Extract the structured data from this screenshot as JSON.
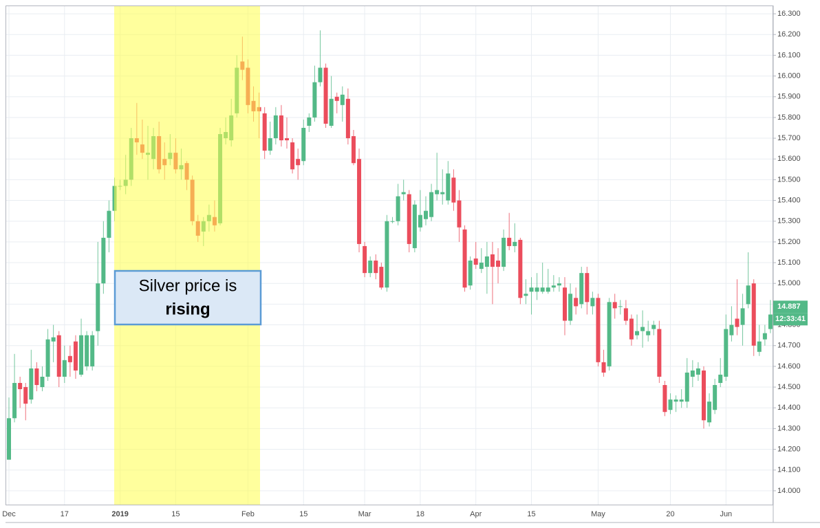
{
  "chart_data": {
    "type": "candlestick",
    "categories": [
      "Dec",
      null,
      null,
      null,
      null,
      null,
      null,
      null,
      null,
      null,
      "17",
      null,
      null,
      null,
      null,
      null,
      null,
      null,
      null,
      null,
      "2019",
      null,
      null,
      null,
      null,
      null,
      null,
      null,
      null,
      null,
      "15",
      null,
      null,
      null,
      null,
      null,
      null,
      null,
      null,
      null,
      null,
      null,
      null,
      "Feb",
      null,
      null,
      null,
      null,
      null,
      null,
      null,
      null,
      null,
      "15",
      null,
      null,
      null,
      null,
      null,
      null,
      null,
      null,
      null,
      null,
      "Mar",
      null,
      null,
      null,
      null,
      null,
      null,
      null,
      null,
      null,
      "18",
      null,
      null,
      null,
      null,
      null,
      null,
      null,
      null,
      null,
      "Apr",
      null,
      null,
      null,
      null,
      null,
      null,
      null,
      null,
      null,
      "15",
      null,
      null,
      null,
      null,
      null,
      null,
      null,
      null,
      null,
      null,
      null,
      "May",
      null,
      null,
      null,
      null,
      null,
      null,
      null,
      null,
      null,
      null,
      null,
      null,
      "20",
      null,
      null,
      null,
      null,
      null,
      null,
      null,
      null,
      null,
      "Jun",
      null,
      null,
      null,
      null,
      null,
      null,
      null,
      null
    ],
    "open": [
      14.15,
      14.35,
      14.52,
      14.5,
      14.44,
      14.59,
      14.5,
      14.55,
      14.72,
      14.75,
      14.55,
      14.65,
      14.72,
      14.56,
      14.6,
      14.6,
      14.77,
      15.0,
      15.22,
      15.35,
      15.47,
      15.47,
      15.5,
      15.7,
      15.67,
      15.62,
      15.6,
      15.71,
      15.6,
      15.6,
      15.63,
      15.55,
      15.58,
      15.5,
      15.3,
      15.25,
      15.3,
      15.32,
      15.29,
      15.7,
      15.69,
      15.82,
      16.07,
      16.04,
      15.88,
      15.85,
      15.82,
      15.64,
      15.7,
      15.81,
      15.7,
      15.68,
      15.6,
      15.59,
      15.76,
      15.8,
      15.97,
      16.04,
      15.76,
      15.9,
      15.86,
      15.89,
      15.71,
      15.6,
      15.18,
      15.05,
      15.11,
      15.08,
      14.98,
      15.3,
      15.3,
      15.43,
      15.43,
      15.17,
      15.27,
      15.31,
      15.32,
      15.43,
      15.43,
      15.4,
      15.51,
      15.4,
      15.26,
      14.99,
      15.12,
      15.07,
      15.08,
      15.14,
      15.11,
      15.08,
      15.22,
      15.18,
      15.21,
      14.94,
      14.96,
      14.96,
      14.96,
      14.96,
      14.98,
      14.99,
      14.98,
      14.82,
      14.93,
      14.9,
      15.05,
      14.89,
      14.93,
      14.62,
      14.6,
      14.91,
      14.89,
      14.88,
      14.83,
      14.75,
      14.77,
      14.75,
      14.78,
      14.78,
      14.51,
      14.39,
      14.43,
      14.43,
      14.43,
      14.55,
      14.56,
      14.58,
      14.33,
      14.39,
      14.52,
      14.55,
      14.75,
      14.83,
      14.8,
      14.9,
      15.0,
      14.67,
      14.73,
      14.78
    ],
    "high": [
      14.45,
      14.66,
      14.55,
      14.52,
      14.68,
      14.62,
      14.6,
      14.78,
      14.8,
      14.77,
      14.7,
      14.7,
      14.75,
      14.83,
      14.77,
      14.77,
      15.2,
      15.3,
      15.4,
      15.51,
      15.5,
      15.62,
      15.75,
      15.87,
      15.79,
      15.76,
      15.75,
      15.78,
      15.68,
      15.72,
      15.7,
      15.65,
      15.59,
      15.52,
      15.33,
      15.32,
      15.38,
      15.4,
      15.75,
      15.8,
      15.89,
      16.1,
      16.19,
      16.08,
      15.95,
      15.92,
      15.85,
      15.78,
      15.85,
      15.86,
      15.8,
      15.7,
      15.65,
      15.79,
      15.82,
      16.05,
      16.22,
      16.06,
      16.0,
      15.92,
      15.95,
      15.94,
      15.74,
      15.65,
      15.2,
      15.13,
      15.14,
      15.1,
      15.33,
      15.32,
      15.48,
      15.5,
      15.45,
      15.4,
      15.45,
      15.42,
      15.48,
      15.63,
      15.55,
      15.59,
      15.55,
      15.45,
      15.28,
      15.13,
      15.2,
      15.17,
      15.2,
      15.2,
      15.17,
      15.26,
      15.34,
      15.29,
      15.22,
      15.02,
      15.03,
      15.05,
      15.1,
      15.07,
      15.04,
      15.03,
      15.03,
      15.0,
      14.98,
      15.08,
      15.08,
      14.96,
      14.95,
      14.68,
      14.93,
      14.95,
      14.92,
      14.92,
      14.85,
      14.85,
      14.87,
      14.82,
      14.82,
      14.82,
      14.53,
      14.47,
      14.46,
      14.49,
      14.64,
      14.63,
      14.62,
      14.6,
      14.47,
      14.54,
      14.64,
      14.85,
      14.89,
      15.02,
      14.95,
      15.15,
      15.02,
      14.8,
      14.8,
      14.92
    ],
    "low": [
      14.15,
      14.33,
      14.4,
      14.34,
      14.42,
      14.48,
      14.48,
      14.53,
      14.62,
      14.5,
      14.52,
      14.55,
      14.54,
      14.55,
      14.58,
      14.58,
      14.7,
      14.95,
      15.15,
      15.3,
      15.45,
      15.43,
      15.47,
      15.62,
      15.6,
      15.5,
      15.55,
      15.53,
      15.5,
      15.57,
      15.53,
      15.5,
      15.45,
      15.28,
      15.2,
      15.18,
      15.25,
      15.25,
      15.28,
      15.67,
      15.66,
      15.8,
      15.98,
      15.82,
      15.78,
      15.7,
      15.6,
      15.62,
      15.67,
      15.66,
      15.65,
      15.53,
      15.5,
      15.57,
      15.73,
      15.78,
      15.95,
      15.75,
      15.75,
      15.82,
      15.78,
      15.67,
      15.57,
      15.15,
      15.03,
      15.03,
      15.02,
      14.97,
      14.96,
      15.29,
      15.28,
      15.4,
      15.15,
      15.15,
      15.25,
      15.28,
      15.3,
      15.4,
      15.38,
      15.38,
      15.35,
      15.2,
      14.96,
      14.97,
      15.07,
      15.05,
      14.95,
      14.9,
      15.0,
      15.06,
      15.16,
      15.15,
      14.9,
      14.9,
      14.85,
      14.92,
      14.95,
      14.95,
      14.96,
      14.96,
      14.75,
      14.8,
      14.85,
      14.88,
      14.85,
      14.85,
      14.6,
      14.55,
      14.58,
      14.83,
      14.85,
      14.8,
      14.7,
      14.73,
      14.69,
      14.72,
      14.75,
      14.52,
      14.36,
      14.37,
      14.38,
      14.4,
      14.4,
      14.5,
      14.53,
      14.3,
      14.31,
      14.37,
      14.5,
      14.53,
      14.72,
      14.75,
      14.7,
      14.88,
      14.65,
      14.65,
      14.7,
      14.76
    ],
    "close": [
      14.35,
      14.52,
      14.49,
      14.42,
      14.59,
      14.51,
      14.55,
      14.73,
      14.74,
      14.55,
      14.63,
      14.62,
      14.58,
      14.75,
      14.75,
      14.75,
      15.0,
      15.22,
      15.35,
      15.47,
      15.47,
      15.5,
      15.7,
      15.68,
      15.63,
      15.63,
      15.71,
      15.55,
      15.57,
      15.63,
      15.55,
      15.57,
      15.5,
      15.3,
      15.23,
      15.3,
      15.33,
      15.28,
      15.72,
      15.73,
      15.81,
      16.04,
      16.03,
      15.86,
      15.83,
      15.83,
      15.64,
      15.7,
      15.81,
      15.69,
      15.69,
      15.55,
      15.57,
      15.75,
      15.8,
      15.97,
      16.04,
      15.77,
      15.89,
      15.88,
      15.91,
      15.7,
      15.58,
      15.19,
      15.05,
      15.11,
      15.05,
      14.98,
      15.3,
      15.3,
      15.42,
      15.44,
      15.19,
      15.38,
      15.33,
      15.35,
      15.44,
      15.45,
      15.44,
      15.53,
      15.39,
      15.27,
      14.98,
      15.11,
      15.09,
      15.1,
      15.13,
      15.08,
      15.08,
      15.22,
      15.18,
      15.2,
      14.93,
      14.95,
      14.98,
      14.98,
      14.98,
      14.98,
      14.99,
      15.0,
      14.82,
      14.95,
      14.89,
      15.05,
      14.91,
      14.93,
      14.62,
      14.57,
      14.91,
      14.88,
      14.89,
      14.82,
      14.73,
      14.77,
      14.79,
      14.77,
      14.8,
      14.55,
      14.38,
      14.44,
      14.44,
      14.44,
      14.57,
      14.58,
      14.59,
      14.34,
      14.43,
      14.51,
      14.56,
      14.78,
      14.8,
      14.79,
      14.88,
      14.99,
      14.7,
      14.72,
      14.76,
      14.85
    ],
    "up_color": "#53b987",
    "down_color": "#eb4d5c",
    "ylim": [
      13.93,
      16.34
    ],
    "yticks": [
      {
        "value": 14.0,
        "label": "14.000"
      },
      {
        "value": 14.1,
        "label": "14.100"
      },
      {
        "value": 14.2,
        "label": "14.200"
      },
      {
        "value": 14.3,
        "label": "14.300"
      },
      {
        "value": 14.4,
        "label": "14.400"
      },
      {
        "value": 14.5,
        "label": "14.500"
      },
      {
        "value": 14.6,
        "label": "14.600"
      },
      {
        "value": 14.7,
        "label": "14.700"
      },
      {
        "value": 14.8,
        "label": "14.800"
      },
      {
        "value": 14.9,
        "label": "14.900"
      },
      {
        "value": 15.0,
        "label": "15.000"
      },
      {
        "value": 15.1,
        "label": "15.100"
      },
      {
        "value": 15.2,
        "label": "15.200"
      },
      {
        "value": 15.3,
        "label": "15.300"
      },
      {
        "value": 15.4,
        "label": "15.400"
      },
      {
        "value": 15.5,
        "label": "15.500"
      },
      {
        "value": 15.6,
        "label": "15.600"
      },
      {
        "value": 15.7,
        "label": "15.700"
      },
      {
        "value": 15.8,
        "label": "15.800"
      },
      {
        "value": 15.9,
        "label": "15.900"
      },
      {
        "value": 16.0,
        "label": "16.000"
      },
      {
        "value": 16.1,
        "label": "16.100"
      },
      {
        "value": 16.2,
        "label": "16.200"
      },
      {
        "value": 16.3,
        "label": "16.300"
      }
    ],
    "grid": true,
    "last_price": 14.887,
    "countdown": "12:33:41",
    "annotation": {
      "line1": "Silver price is",
      "line2": "rising"
    }
  }
}
